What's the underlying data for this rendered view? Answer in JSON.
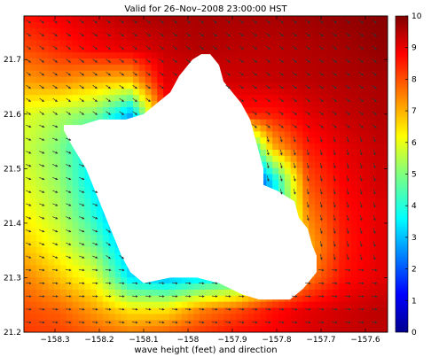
{
  "chart_data": {
    "type": "heatmap",
    "title": "Valid for 26–Nov–2008 23:00:00 HST",
    "xlabel": "wave height (feet) and direction",
    "ylabel": "",
    "xlim": [
      -158.37,
      -157.55
    ],
    "ylim": [
      21.2,
      21.78
    ],
    "x_ticks": [
      -158.3,
      -158.2,
      -158.1,
      -158.0,
      -157.9,
      -157.8,
      -157.7,
      -157.6
    ],
    "x_tick_labels": [
      "−158.3",
      "−158.2",
      "−158.1",
      "−158",
      "−157.9",
      "−157.8",
      "−157.7",
      "−157.6"
    ],
    "y_ticks": [
      21.2,
      21.3,
      21.4,
      21.5,
      21.6,
      21.7
    ],
    "y_tick_labels": [
      "21.2",
      "21.3",
      "21.4",
      "21.5",
      "21.6",
      "21.7"
    ],
    "colorbar": {
      "range": [
        0,
        10
      ],
      "ticks": [
        0,
        1,
        2,
        3,
        4,
        5,
        6,
        7,
        8,
        9,
        10
      ],
      "tick_labels": [
        "0",
        "1",
        "2",
        "3",
        "4",
        "5",
        "6",
        "7",
        "8",
        "9",
        "10"
      ],
      "colormap": "jet"
    },
    "land": {
      "name": "Oahu",
      "outline_lonlat": [
        [
          -158.28,
          21.58
        ],
        [
          -158.24,
          21.58
        ],
        [
          -158.2,
          21.59
        ],
        [
          -158.14,
          21.59
        ],
        [
          -158.1,
          21.6
        ],
        [
          -158.07,
          21.62
        ],
        [
          -158.04,
          21.64
        ],
        [
          -158.02,
          21.67
        ],
        [
          -157.99,
          21.7
        ],
        [
          -157.97,
          21.71
        ],
        [
          -157.95,
          21.71
        ],
        [
          -157.93,
          21.69
        ],
        [
          -157.92,
          21.66
        ],
        [
          -157.9,
          21.64
        ],
        [
          -157.88,
          21.62
        ],
        [
          -157.86,
          21.59
        ],
        [
          -157.85,
          21.56
        ],
        [
          -157.84,
          21.53
        ],
        [
          -157.83,
          21.5
        ],
        [
          -157.83,
          21.47
        ],
        [
          -157.8,
          21.46
        ],
        [
          -157.78,
          21.45
        ],
        [
          -157.76,
          21.44
        ],
        [
          -157.75,
          21.41
        ],
        [
          -157.73,
          21.39
        ],
        [
          -157.72,
          21.36
        ],
        [
          -157.71,
          21.34
        ],
        [
          -157.71,
          21.31
        ],
        [
          -157.74,
          21.28
        ],
        [
          -157.77,
          21.26
        ],
        [
          -157.8,
          21.26
        ],
        [
          -157.84,
          21.26
        ],
        [
          -157.88,
          21.27
        ],
        [
          -157.93,
          21.29
        ],
        [
          -157.98,
          21.3
        ],
        [
          -158.04,
          21.3
        ],
        [
          -158.1,
          21.29
        ],
        [
          -158.13,
          21.31
        ],
        [
          -158.15,
          21.34
        ],
        [
          -158.17,
          21.38
        ],
        [
          -158.19,
          21.42
        ],
        [
          -158.21,
          21.46
        ],
        [
          -158.23,
          21.5
        ],
        [
          -158.26,
          21.54
        ],
        [
          -158.28,
          21.57
        ]
      ]
    },
    "wave_height_field_ft": {
      "grid_lon": [
        -158.37,
        -158.29,
        -158.21,
        -158.13,
        -158.05,
        -157.97,
        -157.89,
        -157.81,
        -157.73,
        -157.65,
        -157.57
      ],
      "grid_lat": [
        21.78,
        21.72,
        21.66,
        21.6,
        21.54,
        21.48,
        21.42,
        21.36,
        21.3,
        21.24,
        21.2
      ],
      "values": [
        [
          8.6,
          8.9,
          9.2,
          9.5,
          9.6,
          9.6,
          9.6,
          9.6,
          9.7,
          9.8,
          9.9
        ],
        [
          8.0,
          8.4,
          8.8,
          9.0,
          9.3,
          9.5,
          9.4,
          9.4,
          9.5,
          9.6,
          9.8
        ],
        [
          7.2,
          7.4,
          7.0,
          6.8,
          9.0,
          9.1,
          9.2,
          9.3,
          9.4,
          9.5,
          9.6
        ],
        [
          6.0,
          5.5,
          5.0,
          3.0,
          8.5,
          9.0,
          8.5,
          8.5,
          9.0,
          9.3,
          9.5
        ],
        [
          5.8,
          5.0,
          3.5,
          1.8,
          0,
          0,
          2.0,
          7.0,
          8.5,
          9.0,
          9.3
        ],
        [
          6.0,
          5.2,
          3.5,
          1.5,
          0,
          0,
          0,
          3.5,
          8.0,
          8.8,
          9.2
        ],
        [
          6.3,
          5.5,
          4.0,
          2.0,
          0,
          0,
          0,
          3.0,
          7.5,
          8.6,
          9.0
        ],
        [
          6.8,
          6.0,
          4.8,
          2.8,
          1.5,
          1.5,
          2.0,
          4.0,
          7.0,
          8.5,
          9.0
        ],
        [
          7.5,
          6.8,
          6.0,
          3.5,
          3.0,
          3.5,
          4.0,
          6.0,
          7.5,
          8.6,
          9.0
        ],
        [
          8.0,
          7.8,
          7.2,
          6.5,
          6.5,
          7.5,
          8.0,
          8.6,
          9.0,
          9.2,
          9.4
        ],
        [
          8.2,
          8.1,
          7.8,
          7.5,
          7.8,
          8.2,
          8.6,
          8.8,
          9.1,
          9.3,
          9.4
        ]
      ]
    },
    "wave_direction": {
      "description_units": "arrows point toward propagation direction",
      "regions": [
        {
          "region": "north and northeast ocean",
          "toward": "southeast"
        },
        {
          "region": "west ocean",
          "toward": "east-southeast"
        },
        {
          "region": "south ocean",
          "toward": "east"
        },
        {
          "region": "east coast",
          "toward": "south"
        }
      ]
    }
  }
}
